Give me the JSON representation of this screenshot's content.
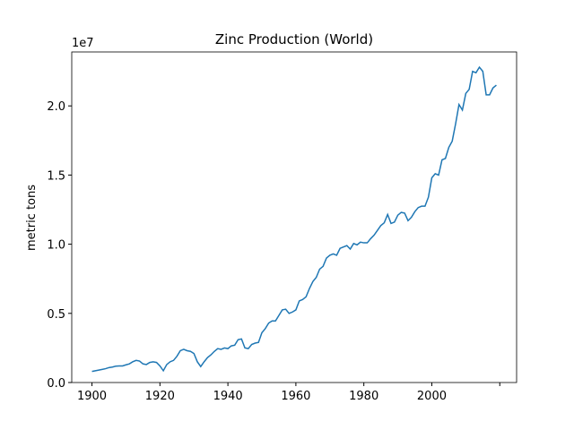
{
  "chart_data": {
    "type": "line",
    "title": "Zinc Production (World)",
    "y_label": "metric tons",
    "y_offset_label": "1e7",
    "x": [
      1900,
      1901,
      1902,
      1903,
      1904,
      1905,
      1906,
      1907,
      1908,
      1909,
      1910,
      1911,
      1912,
      1913,
      1914,
      1915,
      1916,
      1917,
      1918,
      1919,
      1920,
      1921,
      1922,
      1923,
      1924,
      1925,
      1926,
      1927,
      1928,
      1929,
      1930,
      1931,
      1932,
      1933,
      1934,
      1935,
      1936,
      1937,
      1938,
      1939,
      1940,
      1941,
      1942,
      1943,
      1944,
      1945,
      1946,
      1947,
      1948,
      1949,
      1950,
      1951,
      1952,
      1953,
      1954,
      1955,
      1956,
      1957,
      1958,
      1959,
      1960,
      1961,
      1962,
      1963,
      1964,
      1965,
      1966,
      1967,
      1968,
      1969,
      1970,
      1971,
      1972,
      1973,
      1974,
      1975,
      1976,
      1977,
      1978,
      1979,
      1980,
      1981,
      1982,
      1983,
      1984,
      1985,
      1986,
      1987,
      1988,
      1989,
      1990,
      1991,
      1992,
      1993,
      1994,
      1995,
      1996,
      1997,
      1998,
      1999,
      2000,
      2001,
      2002,
      2003,
      2004,
      2005,
      2006,
      2007,
      2008,
      2009,
      2010,
      2011,
      2012,
      2013,
      2014,
      2015,
      2016,
      2017,
      2018,
      2019
    ],
    "series": [
      {
        "name": "World",
        "color": "#1f77b4",
        "values": [
          800000,
          850000,
          900000,
          950000,
          1000000,
          1080000,
          1120000,
          1180000,
          1200000,
          1200000,
          1280000,
          1350000,
          1500000,
          1600000,
          1550000,
          1350000,
          1300000,
          1450000,
          1500000,
          1450000,
          1200000,
          850000,
          1300000,
          1500000,
          1600000,
          1900000,
          2300000,
          2400000,
          2300000,
          2250000,
          2100000,
          1500000,
          1150000,
          1500000,
          1800000,
          2000000,
          2250000,
          2450000,
          2400000,
          2500000,
          2450000,
          2650000,
          2700000,
          3100000,
          3150000,
          2500000,
          2450000,
          2750000,
          2850000,
          2900000,
          3600000,
          3900000,
          4300000,
          4450000,
          4450000,
          4850000,
          5250000,
          5300000,
          5000000,
          5100000,
          5250000,
          5900000,
          6000000,
          6200000,
          6800000,
          7300000,
          7600000,
          8200000,
          8400000,
          9000000,
          9200000,
          9300000,
          9200000,
          9700000,
          9800000,
          9900000,
          9650000,
          10050000,
          9950000,
          10150000,
          10100000,
          10100000,
          10400000,
          10650000,
          11000000,
          11350000,
          11550000,
          12150000,
          11500000,
          11600000,
          12100000,
          12300000,
          12250000,
          11700000,
          11950000,
          12350000,
          12650000,
          12750000,
          12750000,
          13400000,
          14800000,
          15100000,
          15000000,
          16100000,
          16200000,
          17000000,
          17450000,
          18700000,
          20100000,
          19700000,
          20900000,
          21200000,
          22500000,
          22400000,
          22800000,
          22500000,
          20800000,
          20800000,
          21300000,
          21500000
        ]
      }
    ],
    "xlim": [
      1894.05,
      2024.95
    ],
    "xticks": [
      1900,
      1920,
      1940,
      1960,
      1980,
      2000,
      {
        "value": 2020,
        "label": null
      }
    ],
    "ylim": [
      0,
      23900000
    ],
    "yticks": [
      {
        "value": 0,
        "label": "0.0"
      },
      {
        "value": 5000000,
        "label": "0.5"
      },
      {
        "value": 10000000,
        "label": "1.0"
      },
      {
        "value": 15000000,
        "label": "1.5"
      },
      {
        "value": 20000000,
        "label": "2.0"
      }
    ]
  }
}
